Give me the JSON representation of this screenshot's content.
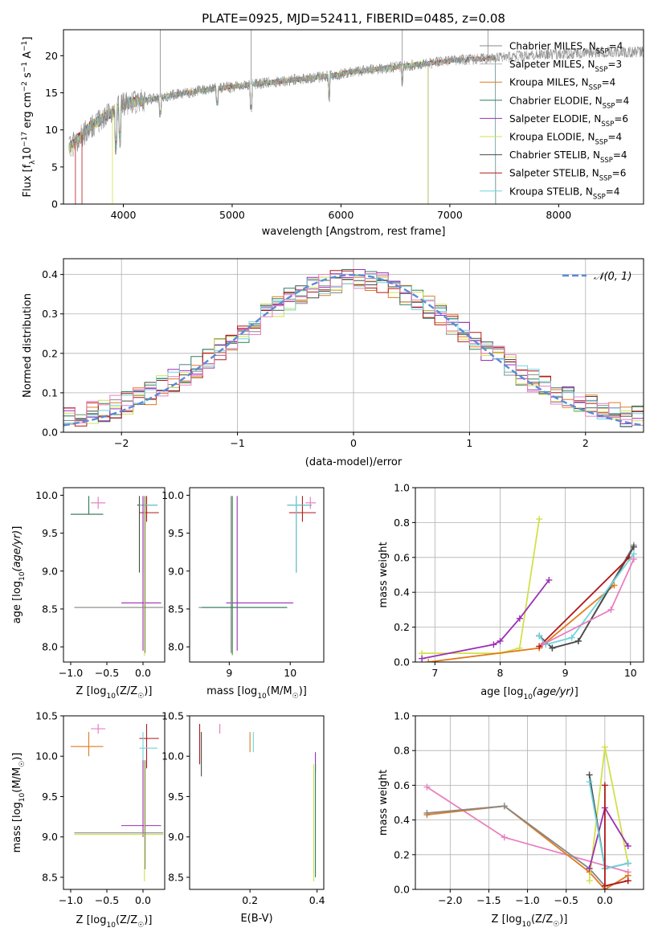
{
  "figure_title": "PLATE=0925, MJD=52411, FIBERID=0485, z=0.08",
  "colors": {
    "Chabrier MILES": "#888888",
    "Salpeter MILES": "#b8b8b8",
    "Kroupa MILES": "#e07b1f",
    "Chabrier ELODIE": "#2f7f5f",
    "Salpeter ELODIE": "#9b2fb5",
    "Kroupa ELODIE": "#d2e04c",
    "Chabrier STELIB": "#4a4a4a",
    "Salpeter STELIB": "#b01818",
    "Kroupa STELIB": "#6fd4dc",
    "pink": "#e880bf",
    "normal_curve": "#5b8bd6",
    "grid": "#b0b0b0"
  },
  "chart_data": [
    {
      "id": "spectrum",
      "type": "line",
      "title": "PLATE=0925, MJD=52411, FIBERID=0485, z=0.08",
      "xlabel": "wavelength [Angstrom, rest frame]",
      "ylabel": "Flux [f_λ 10^-17 erg cm^-2 s^-1 A^-1]",
      "xlim": [
        3450,
        8780
      ],
      "ylim": [
        0,
        23.5
      ],
      "xticks": [
        4000,
        5000,
        6000,
        7000,
        8000
      ],
      "yticks": [
        0,
        5,
        10,
        15,
        20
      ],
      "grid": false,
      "legend_position": "right",
      "continuum": {
        "x": [
          3500,
          3700,
          3900,
          4000,
          4200,
          4500,
          4800,
          5000,
          5300,
          5600,
          5900,
          6100,
          6400,
          6700,
          7000,
          7300,
          7500,
          7800,
          8100,
          8400
        ],
        "y": [
          7.5,
          10.5,
          12.5,
          13.5,
          14.0,
          14.8,
          15.5,
          15.8,
          16.3,
          16.8,
          17.3,
          17.8,
          18.3,
          18.8,
          19.3,
          19.6,
          19.8,
          20.1,
          20.3,
          20.5
        ]
      },
      "series": [
        {
          "name": "Chabrier MILES",
          "label": "Chabrier MILES, N_SSP=4",
          "x_end": 8780
        },
        {
          "name": "Salpeter MILES",
          "label": "Salpeter MILES, N_SSP=3",
          "x_end": 8780
        },
        {
          "name": "Kroupa MILES",
          "label": "Kroupa MILES, N_SSP=4",
          "x_end": 7420
        },
        {
          "name": "Chabrier ELODIE",
          "label": "Chabrier ELODIE, N_SSP=4",
          "x_end": 6800
        },
        {
          "name": "Salpeter ELODIE",
          "label": "Salpeter ELODIE, N_SSP=6",
          "x_end": 6800
        },
        {
          "name": "Kroupa ELODIE",
          "label": "Kroupa ELODIE, N_SSP=4",
          "x_end": 6800
        },
        {
          "name": "Chabrier STELIB",
          "label": "Chabrier STELIB, N_SSP=4",
          "x_end": 7420
        },
        {
          "name": "Salpeter STELIB",
          "label": "Salpeter STELIB, N_SSP=6",
          "x_end": 7420
        },
        {
          "name": "Kroupa STELIB",
          "label": "Kroupa STELIB, N_SSP=4",
          "x_end": 7420
        }
      ]
    },
    {
      "id": "residuals",
      "type": "line",
      "xlabel": "(data-model)/error",
      "ylabel": "Normed distribution",
      "xlim": [
        -2.5,
        2.5
      ],
      "ylim": [
        0,
        0.44
      ],
      "xticks": [
        -2,
        -1,
        0,
        1,
        2
      ],
      "yticks": [
        0.0,
        0.1,
        0.2,
        0.3,
        0.4
      ],
      "grid": true,
      "legend_position": "top-right",
      "legend": "𝒩(0, 1)",
      "bin_width": 0.1,
      "series_colors": [
        "#888888",
        "#e07b1f",
        "#2f7f5f",
        "#9b2fb5",
        "#d2e04c",
        "#4a4a4a",
        "#b01818",
        "#6fd4dc",
        "#e880bf"
      ]
    },
    {
      "id": "age_vs_Z",
      "type": "scatter",
      "xlabel": "Z [log10(Z/Z☉)]",
      "ylabel": "age [log10(age/yr)]",
      "xlim": [
        -1.1,
        0.3
      ],
      "ylim": [
        7.8,
        10.1
      ],
      "xticks": [
        -1.0,
        -0.5,
        0.0
      ],
      "yticks": [
        8.0,
        8.5,
        9.0,
        9.5,
        10.0
      ],
      "points": [
        {
          "c": "Kroupa MILES",
          "x": -0.75,
          "y": 9.75,
          "xe": [
            -1.0,
            -0.55
          ],
          "ye": [
            9.75,
            9.99
          ]
        },
        {
          "c": "Chabrier ELODIE",
          "x": -0.75,
          "y": 9.75,
          "xe": [
            -1.0,
            -0.55
          ],
          "ye": [
            9.75,
            9.99
          ]
        },
        {
          "c": "pink",
          "x": -0.62,
          "y": 9.9,
          "xe": [
            -0.72,
            -0.52
          ],
          "ye": [
            9.82,
            9.98
          ]
        },
        {
          "c": "Salpeter STELIB",
          "x": 0.05,
          "y": 9.77,
          "xe": [
            -0.05,
            0.22
          ],
          "ye": [
            9.65,
            9.99
          ]
        },
        {
          "c": "Chabrier STELIB",
          "x": -0.05,
          "y": 9.87,
          "xe": [
            -0.08,
            0.2
          ],
          "ye": [
            8.98,
            9.99
          ]
        },
        {
          "c": "Kroupa STELIB",
          "x": 0.0,
          "y": 9.87,
          "xe": [
            -0.05,
            0.2
          ],
          "ye": [
            8.98,
            9.99
          ]
        },
        {
          "c": "Salpeter ELODIE",
          "x": 0.0,
          "y": 8.58,
          "xe": [
            -0.3,
            0.25
          ],
          "ye": [
            7.95,
            9.99
          ]
        },
        {
          "c": "Kroupa ELODIE",
          "x": 0.02,
          "y": 8.52,
          "xe": [
            -0.95,
            0.28
          ],
          "ye": [
            7.88,
            9.99
          ]
        },
        {
          "c": "Chabrier MILES",
          "x": 0.03,
          "y": 8.52,
          "xe": [
            -0.95,
            0.28
          ],
          "ye": [
            7.92,
            9.99
          ]
        }
      ]
    },
    {
      "id": "age_vs_mass",
      "type": "scatter",
      "xlabel": "mass [log10(M/M☉)]",
      "ylabel": "",
      "xlim": [
        8.35,
        10.55
      ],
      "ylim": [
        7.8,
        10.1
      ],
      "xticks": [
        9,
        10
      ],
      "yticks": [
        8.0,
        8.5,
        9.0,
        9.5,
        10.0
      ],
      "points": [
        {
          "c": "pink",
          "x": 10.33,
          "y": 9.9,
          "xe": [
            10.25,
            10.42
          ],
          "ye": [
            9.82,
            9.98
          ]
        },
        {
          "c": "Salpeter STELIB",
          "x": 10.2,
          "y": 9.77,
          "xe": [
            9.98,
            10.42
          ],
          "ye": [
            9.65,
            9.99
          ]
        },
        {
          "c": "Chabrier STELIB",
          "x": 10.1,
          "y": 9.87,
          "xe": [
            9.95,
            10.35
          ],
          "ye": [
            8.98,
            9.99
          ]
        },
        {
          "c": "Kroupa STELIB",
          "x": 10.1,
          "y": 9.87,
          "xe": [
            9.95,
            10.35
          ],
          "ye": [
            8.98,
            9.99
          ]
        },
        {
          "c": "Salpeter ELODIE",
          "x": 9.13,
          "y": 8.58,
          "xe": [
            8.95,
            10.05
          ],
          "ye": [
            7.95,
            9.99
          ]
        },
        {
          "c": "Kroupa ELODIE",
          "x": 9.05,
          "y": 8.52,
          "xe": [
            8.5,
            9.95
          ],
          "ye": [
            7.88,
            9.99
          ]
        },
        {
          "c": "Chabrier MILES",
          "x": 9.03,
          "y": 8.52,
          "xe": [
            8.5,
            9.95
          ],
          "ye": [
            7.92,
            9.99
          ]
        },
        {
          "c": "Chabrier ELODIE",
          "x": 9.05,
          "y": 8.52,
          "xe": [
            8.55,
            9.95
          ],
          "ye": [
            7.9,
            9.99
          ]
        }
      ]
    },
    {
      "id": "weight_vs_age",
      "type": "line",
      "xlabel": "age [log10(age/yr)]",
      "ylabel": "mass weight",
      "xlim": [
        6.7,
        10.2
      ],
      "ylim": [
        0,
        1.0
      ],
      "xticks": [
        7,
        8,
        9,
        10
      ],
      "yticks": [
        0.0,
        0.2,
        0.4,
        0.6,
        0.8,
        1.0
      ],
      "grid": true,
      "series": [
        {
          "c": "Kroupa ELODIE",
          "x": [
            6.8,
            8.0,
            8.3,
            8.6
          ],
          "y": [
            0.05,
            0.05,
            0.08,
            0.82
          ]
        },
        {
          "c": "Salpeter ELODIE",
          "x": [
            6.8,
            7.9,
            8.0,
            8.3,
            8.75
          ],
          "y": [
            0.02,
            0.1,
            0.12,
            0.25,
            0.47
          ]
        },
        {
          "c": "Kroupa MILES",
          "x": [
            6.9,
            8.6,
            9.75
          ],
          "y": [
            0.0,
            0.08,
            0.44
          ]
        },
        {
          "c": "Chabrier MILES",
          "x": [
            8.6,
            8.8,
            9.2,
            10.05
          ],
          "y": [
            0.15,
            0.08,
            0.12,
            0.67
          ]
        },
        {
          "c": "Chabrier STELIB",
          "x": [
            8.6,
            8.8,
            9.2,
            10.05
          ],
          "y": [
            0.15,
            0.08,
            0.12,
            0.66
          ]
        },
        {
          "c": "Salpeter STELIB",
          "x": [
            8.6,
            9.98
          ],
          "y": [
            0.09,
            0.6
          ]
        },
        {
          "c": "Kroupa STELIB",
          "x": [
            8.6,
            8.7,
            9.1,
            10.05
          ],
          "y": [
            0.15,
            0.1,
            0.14,
            0.62
          ]
        },
        {
          "c": "pink",
          "x": [
            8.65,
            9.7,
            10.05
          ],
          "y": [
            0.1,
            0.3,
            0.59
          ]
        }
      ]
    },
    {
      "id": "mass_vs_Z",
      "type": "scatter",
      "xlabel": "Z [log10(Z/Z☉)]",
      "ylabel": "mass [log10(M/M☉)]",
      "xlim": [
        -1.1,
        0.3
      ],
      "ylim": [
        8.35,
        10.5
      ],
      "xticks": [
        -1.0,
        -0.5,
        0.0
      ],
      "yticks": [
        8.5,
        9.0,
        9.5,
        10.0,
        10.5
      ],
      "points": [
        {
          "c": "Kroupa MILES",
          "x": -0.75,
          "y": 10.12,
          "xe": [
            -1.0,
            -0.55
          ],
          "ye": [
            10.0,
            10.3
          ]
        },
        {
          "c": "pink",
          "x": -0.62,
          "y": 10.34,
          "xe": [
            -0.72,
            -0.52
          ],
          "ye": [
            10.28,
            10.4
          ]
        },
        {
          "c": "Salpeter STELIB",
          "x": 0.05,
          "y": 10.22,
          "xe": [
            -0.05,
            0.22
          ],
          "ye": [
            9.85,
            10.4
          ]
        },
        {
          "c": "Kroupa STELIB",
          "x": 0.0,
          "y": 10.1,
          "xe": [
            -0.05,
            0.2
          ],
          "ye": [
            9.85,
            10.3
          ]
        },
        {
          "c": "Salpeter ELODIE",
          "x": 0.0,
          "y": 9.14,
          "xe": [
            -0.3,
            0.25
          ],
          "ye": [
            9.0,
            9.95
          ]
        },
        {
          "c": "Kroupa ELODIE",
          "x": 0.02,
          "y": 9.03,
          "xe": [
            -0.95,
            0.28
          ],
          "ye": [
            8.45,
            9.95
          ]
        },
        {
          "c": "Chabrier MILES",
          "x": 0.03,
          "y": 9.05,
          "xe": [
            -0.95,
            0.28
          ],
          "ye": [
            8.6,
            9.95
          ]
        }
      ]
    },
    {
      "id": "mass_vs_EBV",
      "type": "scatter",
      "xlabel": "E(B-V)",
      "ylabel": "",
      "xlim": [
        0.02,
        0.42
      ],
      "ylim": [
        8.35,
        10.5
      ],
      "xticks": [
        0.2,
        0.4
      ],
      "yticks": [
        8.5,
        9.0,
        9.5,
        10.0,
        10.5
      ],
      "points": [
        {
          "c": "Salpeter STELIB",
          "x": 0.05,
          "y": 10.2,
          "xe": [
            0.05,
            0.05
          ],
          "ye": [
            9.9,
            10.4
          ]
        },
        {
          "c": "Chabrier STELIB",
          "x": 0.055,
          "y": 10.0,
          "xe": [
            0.055,
            0.055
          ],
          "ye": [
            9.75,
            10.3
          ]
        },
        {
          "c": "pink",
          "x": 0.11,
          "y": 10.34,
          "xe": [
            0.11,
            0.11
          ],
          "ye": [
            10.28,
            10.4
          ]
        },
        {
          "c": "Kroupa MILES",
          "x": 0.2,
          "y": 10.15,
          "xe": [
            0.2,
            0.2
          ],
          "ye": [
            10.05,
            10.3
          ]
        },
        {
          "c": "Kroupa STELIB",
          "x": 0.21,
          "y": 10.15,
          "xe": [
            0.21,
            0.21
          ],
          "ye": [
            10.05,
            10.3
          ]
        },
        {
          "c": "Salpeter ELODIE",
          "x": 0.395,
          "y": 9.9,
          "xe": [
            0.395,
            0.395
          ],
          "ye": [
            9.8,
            10.05
          ]
        },
        {
          "c": "Kroupa ELODIE",
          "x": 0.39,
          "y": 9.0,
          "xe": [
            0.39,
            0.39
          ],
          "ye": [
            8.45,
            9.9
          ]
        },
        {
          "c": "Chabrier ELODIE",
          "x": 0.395,
          "y": 9.0,
          "xe": [
            0.395,
            0.395
          ],
          "ye": [
            8.5,
            9.9
          ]
        }
      ]
    },
    {
      "id": "weight_vs_Z",
      "type": "line",
      "xlabel": "Z [log10(Z/Z☉)]",
      "ylabel": "mass weight",
      "xlim": [
        -2.45,
        0.5
      ],
      "ylim": [
        0,
        1.0
      ],
      "xticks": [
        -2.0,
        -1.5,
        -1.0,
        -0.5,
        0.0
      ],
      "yticks": [
        0.0,
        0.2,
        0.4,
        0.6,
        0.8,
        1.0
      ],
      "grid": true,
      "series": [
        {
          "c": "pink",
          "x": [
            -2.3,
            -1.3,
            0.3
          ],
          "y": [
            0.59,
            0.3,
            0.1
          ]
        },
        {
          "c": "Kroupa MILES",
          "x": [
            -2.3,
            -1.3,
            -0.2,
            0.0,
            0.3
          ],
          "y": [
            0.43,
            0.48,
            0.1,
            0.0,
            0.08
          ]
        },
        {
          "c": "Chabrier MILES",
          "x": [
            -2.3,
            -1.3,
            -0.2,
            0.0,
            0.3
          ],
          "y": [
            0.44,
            0.48,
            0.12,
            0.02,
            0.05
          ]
        },
        {
          "c": "Kroupa ELODIE",
          "x": [
            -0.2,
            0.0,
            0.3
          ],
          "y": [
            0.05,
            0.82,
            0.15
          ]
        },
        {
          "c": "Salpeter ELODIE",
          "x": [
            -0.2,
            0.0,
            0.3
          ],
          "y": [
            0.12,
            0.47,
            0.25
          ]
        },
        {
          "c": "Chabrier STELIB",
          "x": [
            -0.2,
            0.0,
            0.3
          ],
          "y": [
            0.66,
            0.12,
            0.15
          ]
        },
        {
          "c": "Kroupa STELIB",
          "x": [
            -0.2,
            0.0,
            0.3
          ],
          "y": [
            0.62,
            0.12,
            0.15
          ]
        },
        {
          "c": "Salpeter STELIB",
          "x": [
            0.0,
            0.0,
            0.3
          ],
          "y": [
            0.6,
            0.02,
            0.05
          ]
        }
      ]
    }
  ]
}
